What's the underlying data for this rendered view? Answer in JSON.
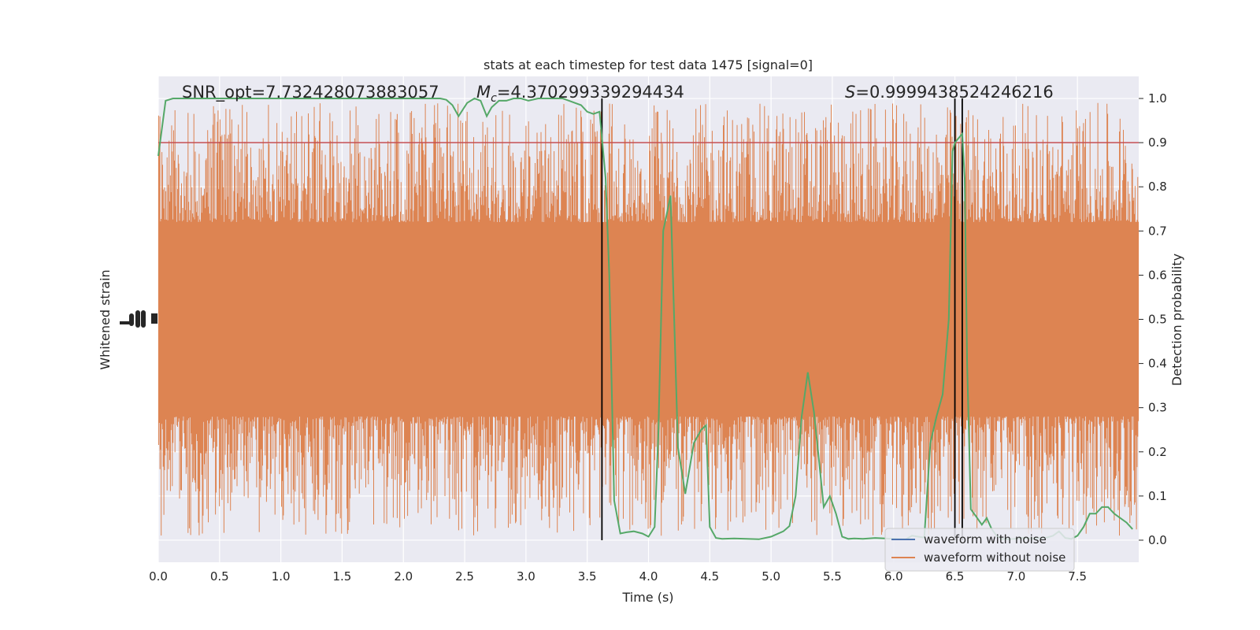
{
  "chart_data": {
    "type": "line",
    "title": "stats at each timestep for test data 1475 [signal=0]",
    "xlabel": "Time (s)",
    "ylabel_left": "Whitened strain",
    "ylabel_right": "Detection probability",
    "xlim": [
      0.0,
      8.0
    ],
    "ylim_right": [
      -0.05,
      1.05
    ],
    "x_ticks": [
      "0.0",
      "0.5",
      "1.0",
      "1.5",
      "2.0",
      "2.5",
      "3.0",
      "3.5",
      "4.0",
      "4.5",
      "5.0",
      "5.5",
      "6.0",
      "6.5",
      "7.0",
      "7.5"
    ],
    "y_ticks_right": [
      "0.0",
      "0.1",
      "0.2",
      "0.3",
      "0.4",
      "0.5",
      "0.6",
      "0.7",
      "0.8",
      "0.9",
      "1.0"
    ],
    "annotations": {
      "snr": "SNR_opt=7.732428073883057",
      "mc_symbol": "M",
      "mc_sub": "c",
      "mc_value": "=4.370299339294434",
      "s_symbol": "S",
      "s_value": "=0.9999438524246216"
    },
    "threshold": 0.9,
    "vertical_lines": [
      3.62,
      6.5,
      6.56
    ],
    "legend": {
      "location": "lower-right",
      "entries": [
        {
          "label": "waveform with noise",
          "color": "#4c72b0"
        },
        {
          "label": "waveform without noise",
          "color": "#dd8452"
        }
      ]
    },
    "detection_probability": {
      "name": "detection probability",
      "color": "#55a868",
      "x": [
        0.0,
        0.06,
        0.12,
        0.2,
        0.3,
        0.4,
        0.5,
        0.6,
        0.7,
        0.8,
        0.9,
        1.0,
        1.2,
        1.4,
        1.6,
        1.8,
        2.0,
        2.1,
        2.2,
        2.3,
        2.35,
        2.4,
        2.45,
        2.52,
        2.58,
        2.63,
        2.68,
        2.72,
        2.78,
        2.84,
        2.9,
        2.96,
        3.02,
        3.1,
        3.2,
        3.3,
        3.4,
        3.45,
        3.5,
        3.55,
        3.6,
        3.62,
        3.65,
        3.68,
        3.72,
        3.77,
        3.82,
        3.88,
        3.95,
        4.0,
        4.05,
        4.08,
        4.12,
        4.18,
        4.24,
        4.3,
        4.37,
        4.43,
        4.47,
        4.5,
        4.55,
        4.6,
        4.7,
        4.8,
        4.9,
        5.0,
        5.1,
        5.15,
        5.2,
        5.25,
        5.3,
        5.35,
        5.38,
        5.43,
        5.48,
        5.53,
        5.58,
        5.63,
        5.68,
        5.75,
        5.85,
        6.0,
        6.1,
        6.15,
        6.2,
        6.25,
        6.3,
        6.35,
        6.4,
        6.45,
        6.48,
        6.5,
        6.53,
        6.56,
        6.58,
        6.6,
        6.63,
        6.67,
        6.72,
        6.76,
        6.8,
        6.84,
        6.88,
        6.95,
        7.05,
        7.15,
        7.2,
        7.25,
        7.3,
        7.35,
        7.4,
        7.45,
        7.5,
        7.55,
        7.6,
        7.65,
        7.7,
        7.75,
        7.8,
        7.85,
        7.9,
        7.95
      ],
      "values": [
        0.87,
        0.995,
        1.0,
        1.0,
        1.0,
        1.0,
        1.0,
        1.0,
        1.0,
        1.0,
        1.0,
        1.0,
        1.0,
        1.0,
        1.0,
        1.0,
        1.0,
        1.0,
        1.0,
        1.0,
        0.997,
        0.985,
        0.96,
        0.99,
        1.0,
        0.995,
        0.96,
        0.98,
        0.995,
        0.995,
        1.0,
        1.0,
        0.995,
        1.0,
        1.0,
        1.0,
        0.99,
        0.985,
        0.97,
        0.965,
        0.97,
        0.91,
        0.82,
        0.6,
        0.09,
        0.015,
        0.018,
        0.02,
        0.015,
        0.008,
        0.03,
        0.24,
        0.7,
        0.78,
        0.21,
        0.105,
        0.22,
        0.25,
        0.26,
        0.03,
        0.005,
        0.003,
        0.004,
        0.003,
        0.002,
        0.008,
        0.02,
        0.032,
        0.1,
        0.28,
        0.38,
        0.29,
        0.21,
        0.075,
        0.1,
        0.06,
        0.008,
        0.003,
        0.004,
        0.003,
        0.005,
        0.003,
        0.002,
        0.01,
        0.008,
        0.006,
        0.22,
        0.28,
        0.33,
        0.5,
        0.88,
        0.9,
        0.91,
        0.92,
        0.82,
        0.4,
        0.07,
        0.055,
        0.035,
        0.05,
        0.025,
        0.01,
        0.003,
        0.002,
        0.005,
        0.004,
        0.005,
        0.006,
        0.01,
        0.02,
        0.005,
        0.003,
        0.01,
        0.03,
        0.06,
        0.06,
        0.075,
        0.075,
        0.06,
        0.05,
        0.04,
        0.025
      ]
    }
  }
}
